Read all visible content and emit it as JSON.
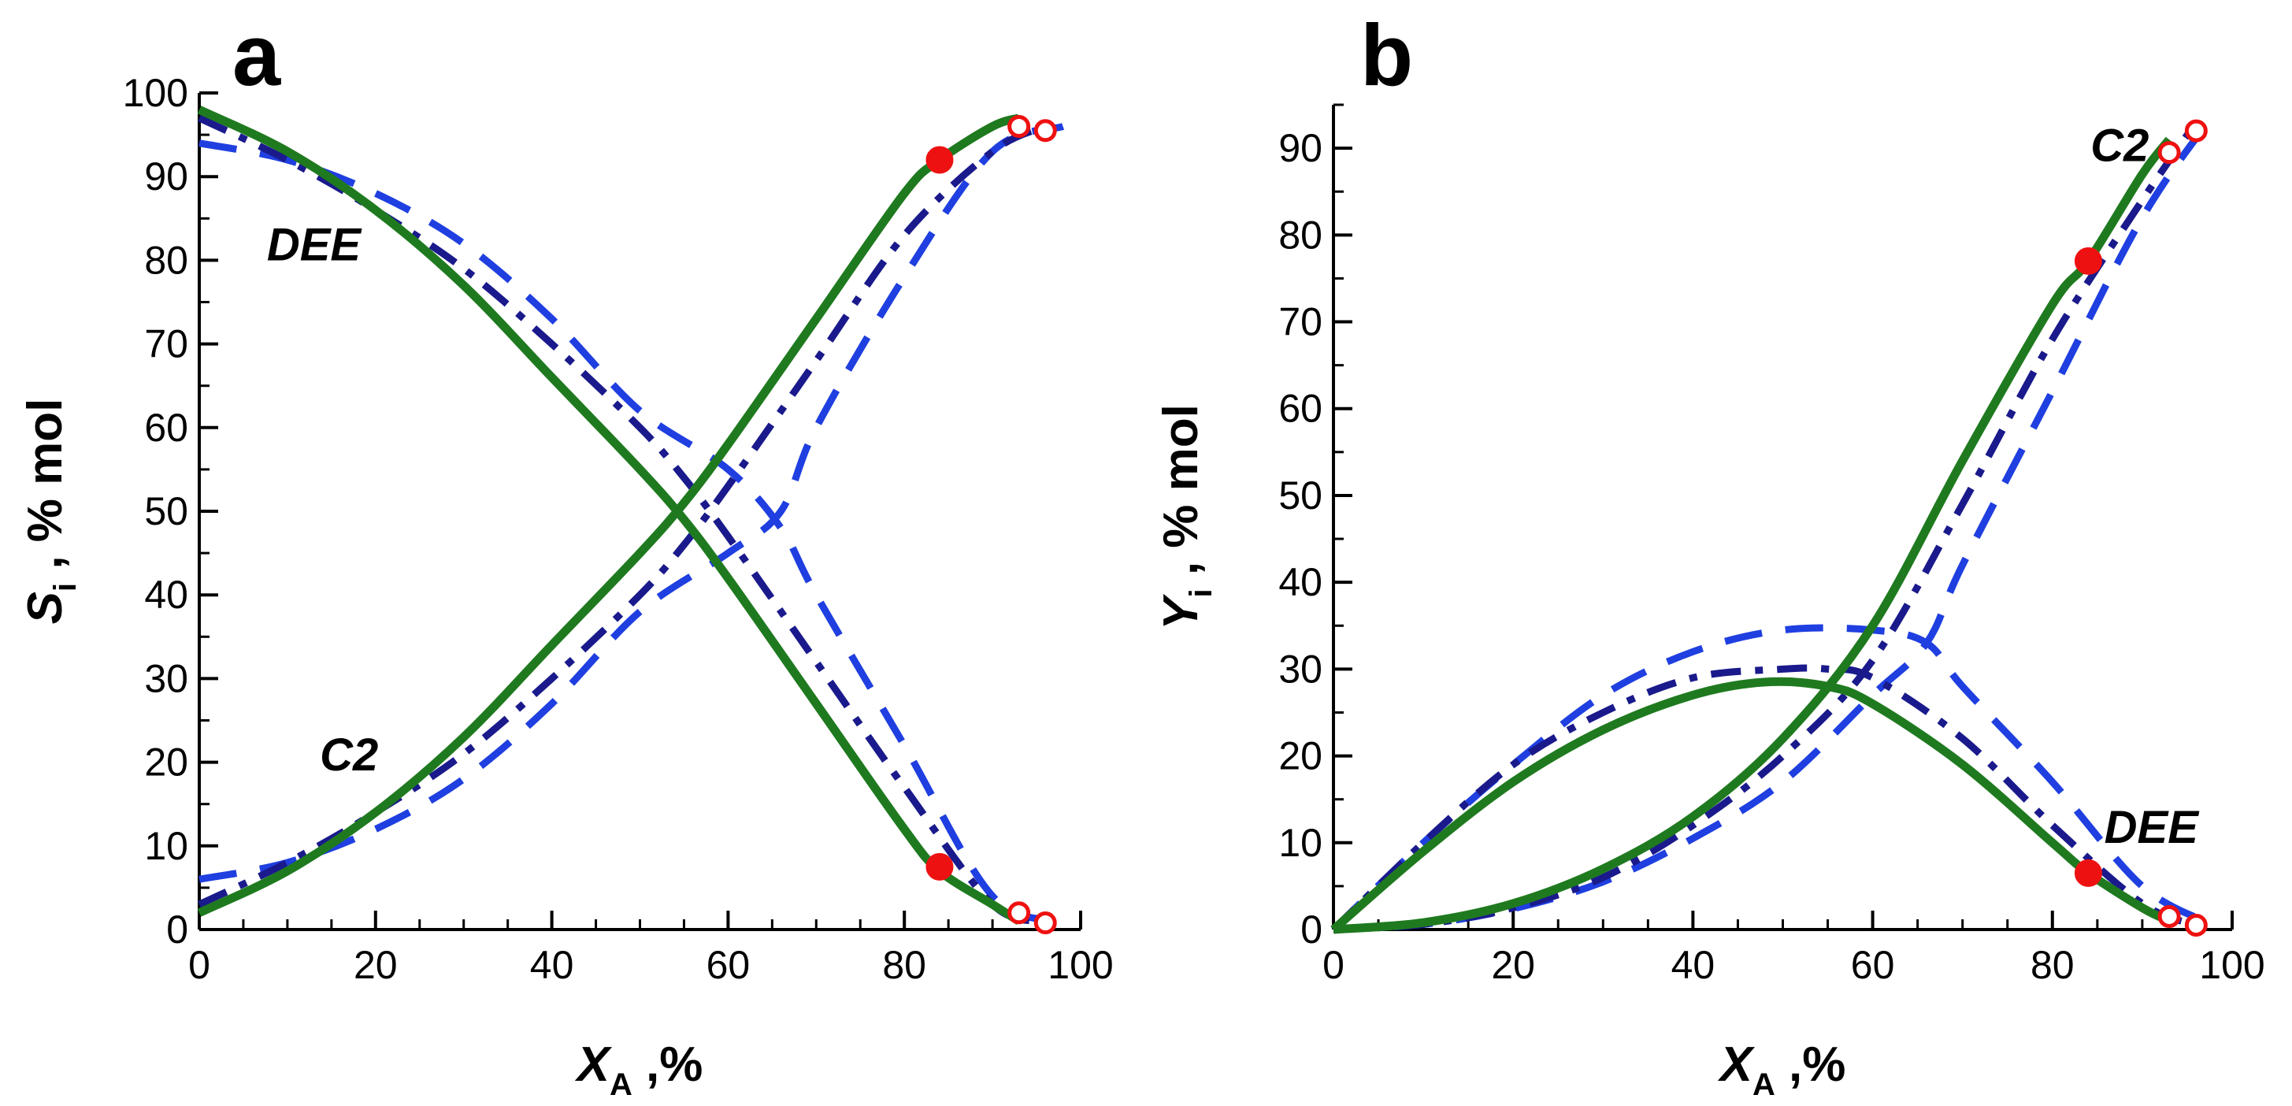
{
  "figure": {
    "colors": {
      "solid": "#1f7a1f",
      "dashed": "#1f3fe0",
      "dashdot": "#1a1a8c",
      "marker": "#ee1111",
      "axis": "#000000"
    }
  },
  "chart_data": [
    {
      "panel": "a",
      "type": "line",
      "xlabel": {
        "main": "X",
        "sub": "A",
        "suffix": " ,%"
      },
      "ylabel": {
        "main": "S",
        "sub": "i",
        "suffix": " , % mol"
      },
      "xlim": [
        0,
        100
      ],
      "ylim": [
        0,
        100
      ],
      "xticks": [
        0,
        20,
        40,
        60,
        80,
        100
      ],
      "yticks": [
        0,
        10,
        20,
        30,
        40,
        50,
        60,
        70,
        80,
        90,
        100
      ],
      "xtick_labels": [
        "0",
        "20",
        "40",
        "60",
        "80",
        "100"
      ],
      "ytick_labels": [
        "0",
        "10",
        "20",
        "30",
        "40",
        "50",
        "60",
        "70",
        "80",
        "90",
        "100"
      ],
      "annotations": [
        {
          "text": "DEE",
          "x": 13,
          "y": 80
        },
        {
          "text": "C2",
          "x": 17,
          "y": 19
        }
      ],
      "series": [
        {
          "name": "DEE solid",
          "style": "solid",
          "x": [
            0,
            10,
            20,
            30,
            40,
            50,
            55,
            60,
            70,
            80,
            84,
            90,
            93
          ],
          "y": [
            98,
            93,
            86,
            77,
            66,
            55,
            49,
            42,
            27,
            12,
            7,
            3,
            1
          ]
        },
        {
          "name": "C2 solid",
          "style": "solid",
          "x": [
            0,
            10,
            20,
            30,
            40,
            50,
            55,
            60,
            70,
            80,
            84,
            90,
            93
          ],
          "y": [
            2,
            7,
            14,
            23,
            34,
            45,
            51,
            58,
            73,
            88,
            92,
            96,
            97
          ]
        },
        {
          "name": "DEE dash-dot",
          "style": "dashdot",
          "x": [
            0,
            10,
            20,
            30,
            40,
            50,
            55,
            60,
            70,
            80,
            90,
            96
          ],
          "y": [
            97,
            92,
            86,
            79,
            70,
            60,
            54,
            47,
            32,
            17,
            3,
            1
          ]
        },
        {
          "name": "C2 dash-dot",
          "style": "dashdot",
          "x": [
            0,
            10,
            20,
            30,
            40,
            50,
            55,
            60,
            70,
            80,
            90,
            96
          ],
          "y": [
            3,
            8,
            14,
            21,
            30,
            40,
            46,
            53,
            68,
            83,
            93,
            96
          ]
        },
        {
          "name": "DEE dashed",
          "style": "dashed",
          "x": [
            0,
            10,
            20,
            30,
            40,
            50,
            60,
            66,
            70,
            80,
            90,
            98
          ],
          "y": [
            94,
            92,
            88,
            82,
            73,
            62,
            55,
            48,
            40,
            22,
            4,
            1
          ]
        },
        {
          "name": "C2 dashed",
          "style": "dashed",
          "x": [
            0,
            10,
            20,
            30,
            40,
            50,
            60,
            66,
            70,
            80,
            90,
            98
          ],
          "y": [
            6,
            8,
            12,
            18,
            27,
            38,
            45,
            50,
            60,
            78,
            93,
            96
          ]
        }
      ],
      "markers": [
        {
          "x": 84,
          "y": 92,
          "filled": true
        },
        {
          "x": 84,
          "y": 7.5,
          "filled": true
        },
        {
          "x": 93,
          "y": 96,
          "filled": false
        },
        {
          "x": 96,
          "y": 95.5,
          "filled": false
        },
        {
          "x": 93,
          "y": 2,
          "filled": false
        },
        {
          "x": 96,
          "y": 0.8,
          "filled": false
        }
      ]
    },
    {
      "panel": "b",
      "type": "line",
      "xlabel": {
        "main": "X",
        "sub": "A",
        "suffix": " ,%"
      },
      "ylabel": {
        "main": "Y",
        "sub": "i",
        "suffix": " , % mol"
      },
      "xlim": [
        0,
        100
      ],
      "ylim": [
        0,
        95
      ],
      "xticks": [
        0,
        20,
        40,
        60,
        80,
        100
      ],
      "yticks": [
        0,
        10,
        20,
        30,
        40,
        50,
        60,
        70,
        80,
        90
      ],
      "xtick_labels": [
        "0",
        "20",
        "40",
        "60",
        "80",
        "100"
      ],
      "ytick_labels": [
        "0",
        "10",
        "20",
        "30",
        "40",
        "50",
        "60",
        "70",
        "80",
        "90"
      ],
      "annotations": [
        {
          "text": "C2",
          "x": 87.5,
          "y": 88.5
        },
        {
          "text": "DEE",
          "x": 91,
          "y": 10
        }
      ],
      "series": [
        {
          "name": "DEE solid",
          "style": "solid",
          "x": [
            0,
            10,
            20,
            30,
            40,
            48,
            55,
            60,
            70,
            80,
            84,
            90,
            93
          ],
          "y": [
            0,
            9,
            17,
            23,
            27,
            28.5,
            28,
            26,
            19,
            10,
            6.5,
            2.5,
            1
          ]
        },
        {
          "name": "C2 solid",
          "style": "solid",
          "x": [
            0,
            10,
            20,
            30,
            40,
            50,
            60,
            70,
            80,
            84,
            90,
            93
          ],
          "y": [
            0,
            0.8,
            3,
            7,
            13,
            22,
            35,
            54,
            72,
            77,
            87,
            91
          ]
        },
        {
          "name": "DEE dash-dot",
          "style": "dashdot",
          "x": [
            0,
            10,
            20,
            30,
            40,
            50,
            55,
            60,
            70,
            80,
            90,
            96
          ],
          "y": [
            0,
            10,
            19,
            25,
            29,
            30,
            30,
            29,
            22,
            12,
            3,
            0.5
          ]
        },
        {
          "name": "C2 dash-dot",
          "style": "dashdot",
          "x": [
            0,
            10,
            20,
            30,
            40,
            50,
            60,
            70,
            80,
            90,
            96
          ],
          "y": [
            0,
            0.6,
            2.5,
            6,
            12,
            20,
            31,
            49,
            68,
            84,
            93
          ]
        },
        {
          "name": "DEE dashed",
          "style": "dashed",
          "x": [
            0,
            10,
            20,
            30,
            40,
            50,
            60,
            66,
            70,
            80,
            90,
            98
          ],
          "y": [
            0,
            10,
            19,
            27,
            32,
            34.5,
            34.5,
            33,
            28,
            17,
            5,
            0.5
          ]
        },
        {
          "name": "C2 dashed",
          "style": "dashed",
          "x": [
            0,
            10,
            20,
            30,
            40,
            50,
            60,
            66,
            70,
            80,
            90,
            98
          ],
          "y": [
            0,
            0.6,
            2.4,
            5.5,
            10.5,
            17,
            27,
            33,
            42,
            62,
            82,
            94
          ]
        }
      ],
      "markers": [
        {
          "x": 84,
          "y": 77,
          "filled": true
        },
        {
          "x": 84,
          "y": 6.5,
          "filled": true
        },
        {
          "x": 93,
          "y": 89.5,
          "filled": false
        },
        {
          "x": 96,
          "y": 92,
          "filled": false
        },
        {
          "x": 93,
          "y": 1.5,
          "filled": false
        },
        {
          "x": 96,
          "y": 0.5,
          "filled": false
        }
      ]
    }
  ]
}
